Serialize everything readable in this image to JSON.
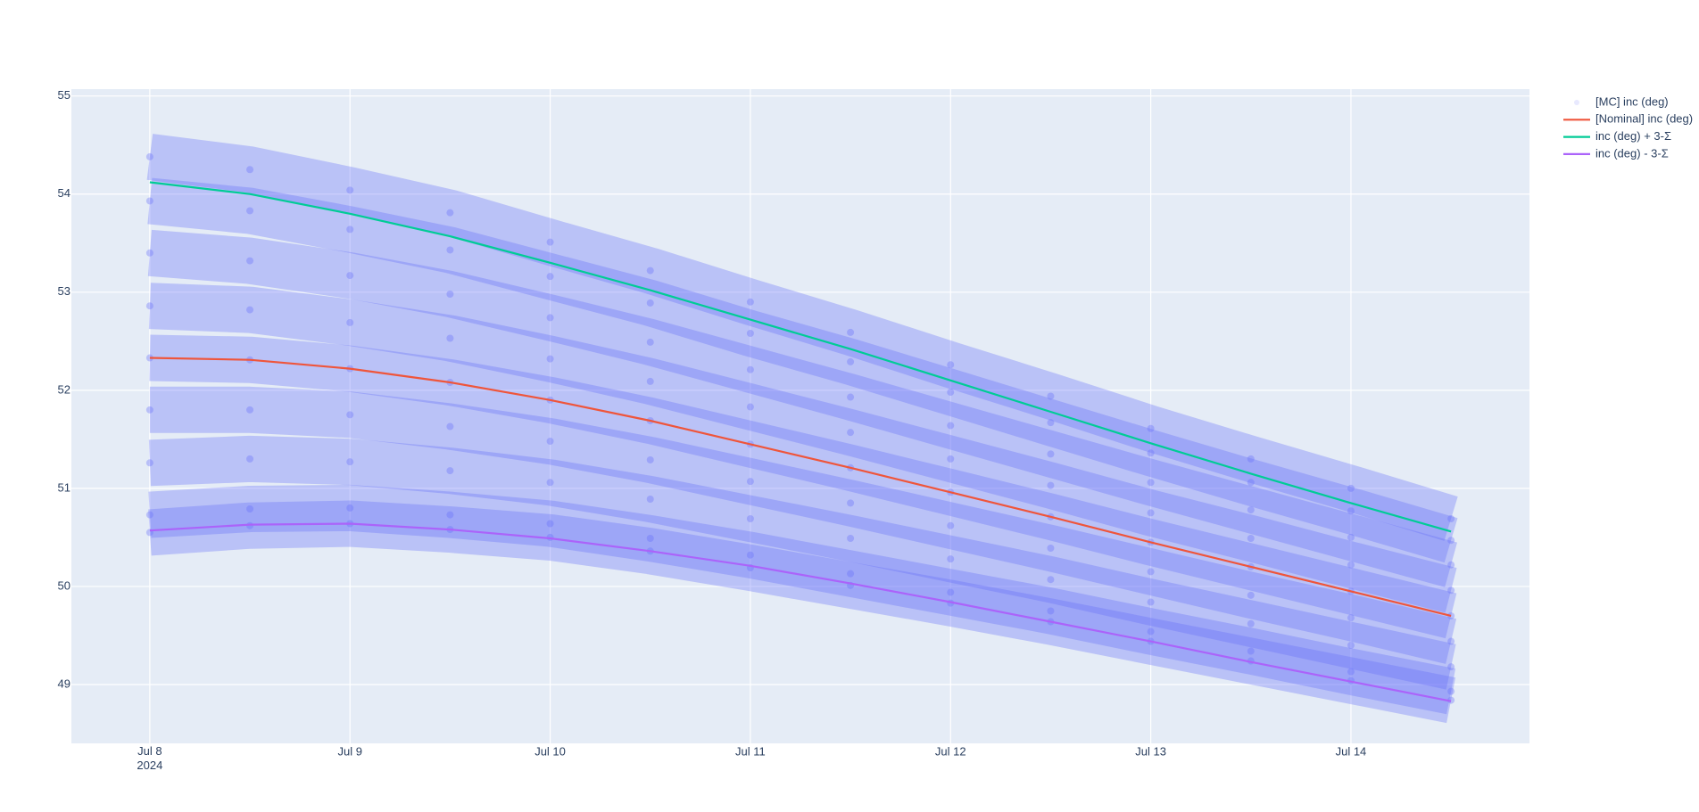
{
  "chart_data": {
    "type": "line",
    "x": [
      "2024-07-08T00:00",
      "2024-07-08T12:00",
      "2024-07-09T00:00",
      "2024-07-09T12:00",
      "2024-07-10T00:00",
      "2024-07-10T12:00",
      "2024-07-11T00:00",
      "2024-07-11T12:00",
      "2024-07-12T00:00",
      "2024-07-12T12:00",
      "2024-07-13T00:00",
      "2024-07-13T12:00",
      "2024-07-14T00:00",
      "2024-07-14T12:00"
    ],
    "series": [
      {
        "name": "[MC] inc (deg)",
        "color": "#636efa",
        "values": [
          [
            54.38,
            54.25,
            54.04,
            53.81,
            53.51,
            53.22,
            52.9,
            52.59,
            52.26,
            51.94,
            51.61,
            51.3,
            51.0,
            50.69
          ],
          [
            53.93,
            53.83,
            53.64,
            53.43,
            53.16,
            52.89,
            52.58,
            52.29,
            51.98,
            51.67,
            51.36,
            51.06,
            50.77,
            50.47
          ],
          [
            53.4,
            53.32,
            53.17,
            52.98,
            52.74,
            52.49,
            52.21,
            51.93,
            51.64,
            51.35,
            51.06,
            50.78,
            50.5,
            50.22
          ],
          [
            52.86,
            52.82,
            52.69,
            52.53,
            52.32,
            52.09,
            51.83,
            51.57,
            51.3,
            51.03,
            50.75,
            50.49,
            50.22,
            49.96
          ],
          [
            52.33,
            52.31,
            52.22,
            52.08,
            51.9,
            51.69,
            51.45,
            51.21,
            50.96,
            50.71,
            50.45,
            50.2,
            49.95,
            49.7
          ],
          [
            51.8,
            51.8,
            51.75,
            51.63,
            51.48,
            51.29,
            51.07,
            50.85,
            50.62,
            50.39,
            50.15,
            49.91,
            49.68,
            49.44
          ],
          [
            51.26,
            51.3,
            51.27,
            51.18,
            51.06,
            50.89,
            50.69,
            50.49,
            50.28,
            50.07,
            49.84,
            49.62,
            49.4,
            49.18
          ],
          [
            50.73,
            50.79,
            50.8,
            50.73,
            50.64,
            50.49,
            50.32,
            50.13,
            49.94,
            49.75,
            49.54,
            49.34,
            49.13,
            48.93
          ],
          [
            50.55,
            50.62,
            50.64,
            50.58,
            50.5,
            50.36,
            50.19,
            50.01,
            49.83,
            49.64,
            49.44,
            49.24,
            49.04,
            48.84
          ]
        ]
      },
      {
        "name": "[Nominal] inc (deg)",
        "color": "#EF553B",
        "values": [
          52.33,
          52.31,
          52.22,
          52.08,
          51.9,
          51.69,
          51.45,
          51.21,
          50.96,
          50.71,
          50.45,
          50.2,
          49.95,
          49.7
        ]
      },
      {
        "name": "inc (deg) + 3-Σ",
        "color": "#00cc96",
        "values": [
          54.12,
          54.0,
          53.8,
          53.57,
          53.3,
          53.02,
          52.72,
          52.42,
          52.1,
          51.78,
          51.46,
          51.15,
          50.85,
          50.56
        ]
      },
      {
        "name": "inc (deg) - 3-Σ",
        "color": "#ab63fa",
        "values": [
          50.57,
          50.63,
          50.64,
          50.58,
          50.49,
          50.36,
          50.21,
          50.03,
          49.84,
          49.64,
          49.44,
          49.23,
          49.03,
          48.83
        ]
      }
    ],
    "xlim": [
      "2024-07-07T14:36",
      "2024-07-14T21:24"
    ],
    "xticks": [
      {
        "value": "2024-07-08T00:00",
        "label": "Jul 8\n2024"
      },
      {
        "value": "2024-07-09T00:00",
        "label": "Jul 9"
      },
      {
        "value": "2024-07-10T00:00",
        "label": "Jul 10"
      },
      {
        "value": "2024-07-11T00:00",
        "label": "Jul 11"
      },
      {
        "value": "2024-07-12T00:00",
        "label": "Jul 12"
      },
      {
        "value": "2024-07-13T00:00",
        "label": "Jul 13"
      },
      {
        "value": "2024-07-14T00:00",
        "label": "Jul 14"
      }
    ],
    "ylim": [
      48.4,
      55.07
    ],
    "yticks": [
      49,
      50,
      51,
      52,
      53,
      54,
      55
    ],
    "grid": true
  }
}
